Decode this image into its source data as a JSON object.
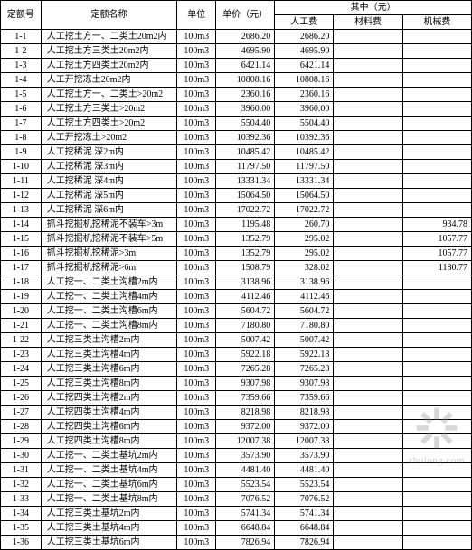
{
  "table": {
    "header": {
      "id": "定额号",
      "name": "定额名称",
      "unit": "单位",
      "price": "单价（元）",
      "group": "其中（元）",
      "labor": "人工费",
      "material": "材料费",
      "machine": "机械费"
    },
    "rows": [
      {
        "id": "1-1",
        "name": "人工挖土方一、二类土20m2内",
        "unit": "100m3",
        "price": "2686.20",
        "lab": "2686.20",
        "mat": "",
        "mach": ""
      },
      {
        "id": "1-2",
        "name": "人工挖土方三类土20m2内",
        "unit": "100m3",
        "price": "4695.90",
        "lab": "4695.90",
        "mat": "",
        "mach": ""
      },
      {
        "id": "1-3",
        "name": "人工挖土方四类土20m2内",
        "unit": "100m3",
        "price": "6421.14",
        "lab": "6421.14",
        "mat": "",
        "mach": ""
      },
      {
        "id": "1-4",
        "name": "人工开挖冻土20m2内",
        "unit": "100m3",
        "price": "10808.16",
        "lab": "10808.16",
        "mat": "",
        "mach": ""
      },
      {
        "id": "1-5",
        "name": "人工挖土方一、二类土>20m2",
        "unit": "100m3",
        "price": "2360.16",
        "lab": "2360.16",
        "mat": "",
        "mach": ""
      },
      {
        "id": "1-6",
        "name": "人工挖土方三类土>20m2",
        "unit": "100m3",
        "price": "3960.00",
        "lab": "3960.00",
        "mat": "",
        "mach": ""
      },
      {
        "id": "1-7",
        "name": "人工挖土方四类土>20m2",
        "unit": "100m3",
        "price": "5504.40",
        "lab": "5504.40",
        "mat": "",
        "mach": ""
      },
      {
        "id": "1-8",
        "name": "人工开挖冻土>20m2",
        "unit": "100m3",
        "price": "10392.36",
        "lab": "10392.36",
        "mat": "",
        "mach": ""
      },
      {
        "id": "1-9",
        "name": "人工挖稀泥 深2m内",
        "unit": "100m3",
        "price": "10485.42",
        "lab": "10485.42",
        "mat": "",
        "mach": ""
      },
      {
        "id": "1-10",
        "name": "人工挖稀泥 深3m内",
        "unit": "100m3",
        "price": "11797.50",
        "lab": "11797.50",
        "mat": "",
        "mach": ""
      },
      {
        "id": "1-11",
        "name": "人工挖稀泥 深4m内",
        "unit": "100m3",
        "price": "13331.34",
        "lab": "13331.34",
        "mat": "",
        "mach": ""
      },
      {
        "id": "1-12",
        "name": "人工挖稀泥 深5m内",
        "unit": "100m3",
        "price": "15064.50",
        "lab": "15064.50",
        "mat": "",
        "mach": ""
      },
      {
        "id": "1-13",
        "name": "人工挖稀泥 深6m内",
        "unit": "100m3",
        "price": "17022.72",
        "lab": "17022.72",
        "mat": "",
        "mach": ""
      },
      {
        "id": "1-14",
        "name": "抓斗挖掘机挖稀泥不装车>3m",
        "unit": "100m3",
        "price": "1195.48",
        "lab": "260.70",
        "mat": "",
        "mach": "934.78"
      },
      {
        "id": "1-15",
        "name": "抓斗挖掘机挖稀泥不装车>5m",
        "unit": "100m3",
        "price": "1352.79",
        "lab": "295.02",
        "mat": "",
        "mach": "1057.77"
      },
      {
        "id": "1-16",
        "name": "抓斗挖掘机挖稀泥>3m",
        "unit": "100m3",
        "price": "1352.79",
        "lab": "295.02",
        "mat": "",
        "mach": "1057.77"
      },
      {
        "id": "1-17",
        "name": "抓斗挖掘机挖稀泥>6m",
        "unit": "100m3",
        "price": "1508.79",
        "lab": "328.02",
        "mat": "",
        "mach": "1180.77"
      },
      {
        "id": "1-18",
        "name": "人工挖一、二类土沟槽2m内",
        "unit": "100m3",
        "price": "3138.96",
        "lab": "3138.96",
        "mat": "",
        "mach": ""
      },
      {
        "id": "1-19",
        "name": "人工挖一、二类土沟槽4m内",
        "unit": "100m3",
        "price": "4112.46",
        "lab": "4112.46",
        "mat": "",
        "mach": ""
      },
      {
        "id": "1-20",
        "name": "人工挖一、二类土沟槽6m内",
        "unit": "100m3",
        "price": "5604.72",
        "lab": "5604.72",
        "mat": "",
        "mach": ""
      },
      {
        "id": "1-21",
        "name": "人工挖一、二类土沟槽8m内",
        "unit": "100m3",
        "price": "7180.80",
        "lab": "7180.80",
        "mat": "",
        "mach": ""
      },
      {
        "id": "1-22",
        "name": "人工挖三类土沟槽2m内",
        "unit": "100m3",
        "price": "5007.42",
        "lab": "5007.42",
        "mat": "",
        "mach": ""
      },
      {
        "id": "1-23",
        "name": "人工挖三类土沟槽4m内",
        "unit": "100m3",
        "price": "5922.18",
        "lab": "5922.18",
        "mat": "",
        "mach": ""
      },
      {
        "id": "1-24",
        "name": "人工挖三类土沟槽6m内",
        "unit": "100m3",
        "price": "7265.28",
        "lab": "7265.28",
        "mat": "",
        "mach": ""
      },
      {
        "id": "1-25",
        "name": "人工挖三类土沟槽8m内",
        "unit": "100m3",
        "price": "9307.98",
        "lab": "9307.98",
        "mat": "",
        "mach": ""
      },
      {
        "id": "1-26",
        "name": "人工挖四类土沟槽2m内",
        "unit": "100m3",
        "price": "7359.66",
        "lab": "7359.66",
        "mat": "",
        "mach": ""
      },
      {
        "id": "1-27",
        "name": "人工挖四类土沟槽4m内",
        "unit": "100m3",
        "price": "8218.98",
        "lab": "8218.98",
        "mat": "",
        "mach": ""
      },
      {
        "id": "1-28",
        "name": "人工挖四类土沟槽6m内",
        "unit": "100m3",
        "price": "9372.00",
        "lab": "9372.00",
        "mat": "",
        "mach": ""
      },
      {
        "id": "1-29",
        "name": "人工挖四类土沟槽8m内",
        "unit": "100m3",
        "price": "12007.38",
        "lab": "12007.38",
        "mat": "",
        "mach": ""
      },
      {
        "id": "1-30",
        "name": "人工挖一、二类土基坑2m内",
        "unit": "100m3",
        "price": "3573.90",
        "lab": "3573.90",
        "mat": "",
        "mach": ""
      },
      {
        "id": "1-31",
        "name": "人工挖一、二类土基坑4m内",
        "unit": "100m3",
        "price": "4481.40",
        "lab": "4481.40",
        "mat": "",
        "mach": ""
      },
      {
        "id": "1-32",
        "name": "人工挖一、二类土基坑6m内",
        "unit": "100m3",
        "price": "5523.54",
        "lab": "5523.54",
        "mat": "",
        "mach": ""
      },
      {
        "id": "1-33",
        "name": "人工挖一、二类土基坑8m内",
        "unit": "100m3",
        "price": "7076.52",
        "lab": "7076.52",
        "mat": "",
        "mach": ""
      },
      {
        "id": "1-34",
        "name": "人工挖三类土基坑2m内",
        "unit": "100m3",
        "price": "5741.34",
        "lab": "5741.34",
        "mat": "",
        "mach": ""
      },
      {
        "id": "1-35",
        "name": "人工挖三类土基坑4m内",
        "unit": "100m3",
        "price": "6648.84",
        "lab": "6648.84",
        "mat": "",
        "mach": ""
      },
      {
        "id": "1-36",
        "name": "人工挖三类土基坑6m内",
        "unit": "100m3",
        "price": "7826.94",
        "lab": "7826.94",
        "mat": "",
        "mach": ""
      }
    ]
  },
  "watermark": {
    "text": "zhulong.com",
    "logo_color": "#888888"
  }
}
